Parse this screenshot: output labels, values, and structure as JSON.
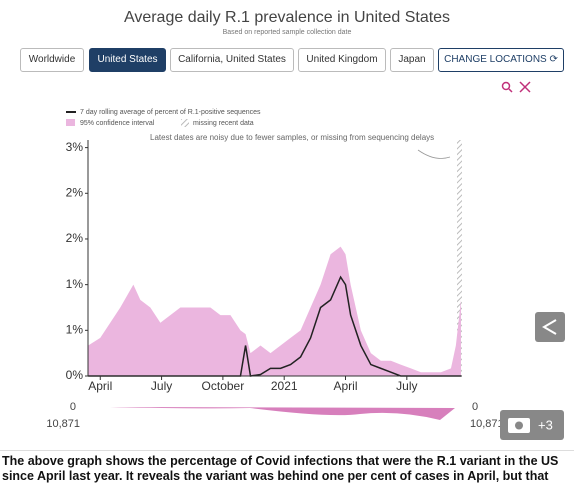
{
  "buttons": [
    "Worldwide",
    "United States",
    "California, United States",
    "United Kingdom",
    "Japan"
  ],
  "change_locations": "CHANGE LOCATIONS",
  "chart_data": {
    "type": "line",
    "title": "Average daily R.1 prevalence in United States",
    "subtitle": "Based on reported sample collection date",
    "annotation": "Latest dates are noisy due to fewer samples, or missing from sequencing delays",
    "missing_label": "missing recent data",
    "x": [
      3.41,
      4,
      4.98,
      5.62,
      5.96,
      6.45,
      6.94,
      7.43,
      7.92,
      8.41,
      8.9,
      9.39,
      9.88,
      10.37,
      10.86,
      11.11,
      11.35,
      11.84,
      12.33,
      12.82,
      13.31,
      13.8,
      14.29,
      14.78,
      15.27,
      15.76,
      16.0,
      16.25,
      16.75,
      17.24,
      17.73,
      18.22,
      18.7,
      19.2,
      19.69,
      20.18,
      20.67,
      21.16,
      21.4,
      21.65
    ],
    "series": [
      {
        "name": "95% confidence interval",
        "type": "area",
        "color": "#ebb6df",
        "values": [
          0.4,
          0.5,
          0.9,
          1.2,
          1.0,
          0.9,
          0.7,
          0.8,
          0.9,
          0.9,
          0.9,
          0.9,
          0.8,
          0.8,
          0.6,
          0.55,
          0.3,
          0.4,
          0.3,
          0.4,
          0.5,
          0.6,
          0.9,
          1.2,
          1.6,
          1.7,
          1.6,
          1.2,
          0.6,
          0.3,
          0.2,
          0.2,
          0.15,
          0.1,
          0.05,
          0.05,
          0.05,
          0.1,
          0.4,
          1.0
        ]
      },
      {
        "name": "7 day rolling average of percent of R.1-positive sequences",
        "type": "line",
        "color": "#222222",
        "values": [
          0,
          0,
          0,
          0,
          0,
          0,
          0,
          0,
          0,
          0,
          0,
          0,
          0,
          0,
          0,
          0.4,
          0,
          0.02,
          0.1,
          0.1,
          0.15,
          0.25,
          0.5,
          0.9,
          1.0,
          1.3,
          1.2,
          0.8,
          0.4,
          0.15,
          0.1,
          0.05,
          0,
          0,
          0,
          0,
          0,
          0,
          0,
          0
        ]
      }
    ],
    "xlim": [
      3.4,
      21.7
    ],
    "xticks": [
      {
        "value": 4,
        "label": "April"
      },
      {
        "value": 7,
        "label": "July"
      },
      {
        "value": 10,
        "label": "October"
      },
      {
        "value": 13,
        "label": "2021"
      },
      {
        "value": 16,
        "label": "April"
      },
      {
        "value": 19,
        "label": "July"
      }
    ],
    "ylim": [
      0,
      3.1
    ],
    "yticks": [
      {
        "value": 0,
        "label": "0%"
      },
      {
        "value": 0.6,
        "label": "1%"
      },
      {
        "value": 1.2,
        "label": "1%"
      },
      {
        "value": 1.8,
        "label": "2%"
      },
      {
        "value": 2.4,
        "label": "2%"
      },
      {
        "value": 3.0,
        "label": "3%"
      }
    ],
    "grid": false
  },
  "brush": {
    "left_top": "0",
    "left_bottom": "10,871",
    "right_top": "0",
    "right_bottom": "10,871"
  },
  "gallery_count": "+3",
  "caption": "The above graph shows the percentage of Covid infections that were the R.1 variant in the US since April last year. It reveals the variant was behind one per cent of cases in April, but that"
}
